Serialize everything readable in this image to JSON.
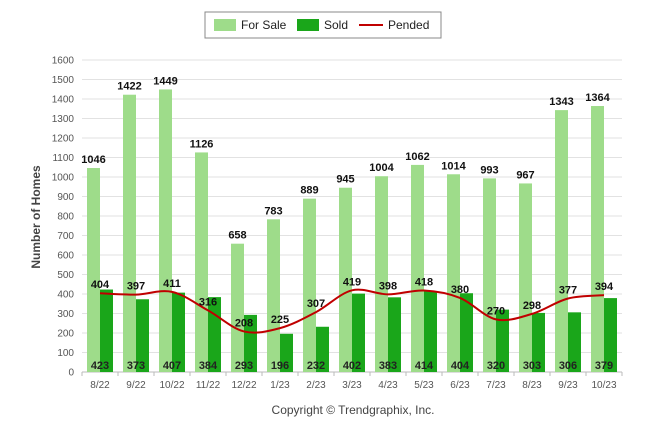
{
  "chart_data": {
    "type": "bar",
    "ylabel": "Number of Homes",
    "ylim": [
      0,
      1600
    ],
    "yticks": [
      0,
      100,
      200,
      300,
      400,
      500,
      600,
      700,
      800,
      900,
      1000,
      1100,
      1200,
      1300,
      1400,
      1500,
      1600
    ],
    "grid": true,
    "legend_position": "top-center",
    "categories": [
      "8/22",
      "9/22",
      "10/22",
      "11/22",
      "12/22",
      "1/23",
      "2/23",
      "3/23",
      "4/23",
      "5/23",
      "6/23",
      "7/23",
      "8/23",
      "9/23",
      "10/23"
    ],
    "series": [
      {
        "name": "For Sale",
        "type": "bar",
        "color": "#9edc8a",
        "values": [
          1046,
          1422,
          1449,
          1126,
          658,
          783,
          889,
          945,
          1004,
          1062,
          1014,
          993,
          967,
          1343,
          1364
        ]
      },
      {
        "name": "Sold",
        "type": "bar",
        "color": "#1aa61a",
        "values": [
          423,
          373,
          407,
          384,
          293,
          196,
          232,
          402,
          383,
          414,
          404,
          320,
          303,
          306,
          379
        ]
      },
      {
        "name": "Pended",
        "type": "line",
        "color": "#c00000",
        "values": [
          404,
          397,
          411,
          316,
          208,
          225,
          307,
          419,
          398,
          418,
          380,
          270,
          298,
          377,
          394
        ]
      }
    ]
  },
  "footer": {
    "copyright": "Copyright © Trendgraphix, Inc."
  }
}
